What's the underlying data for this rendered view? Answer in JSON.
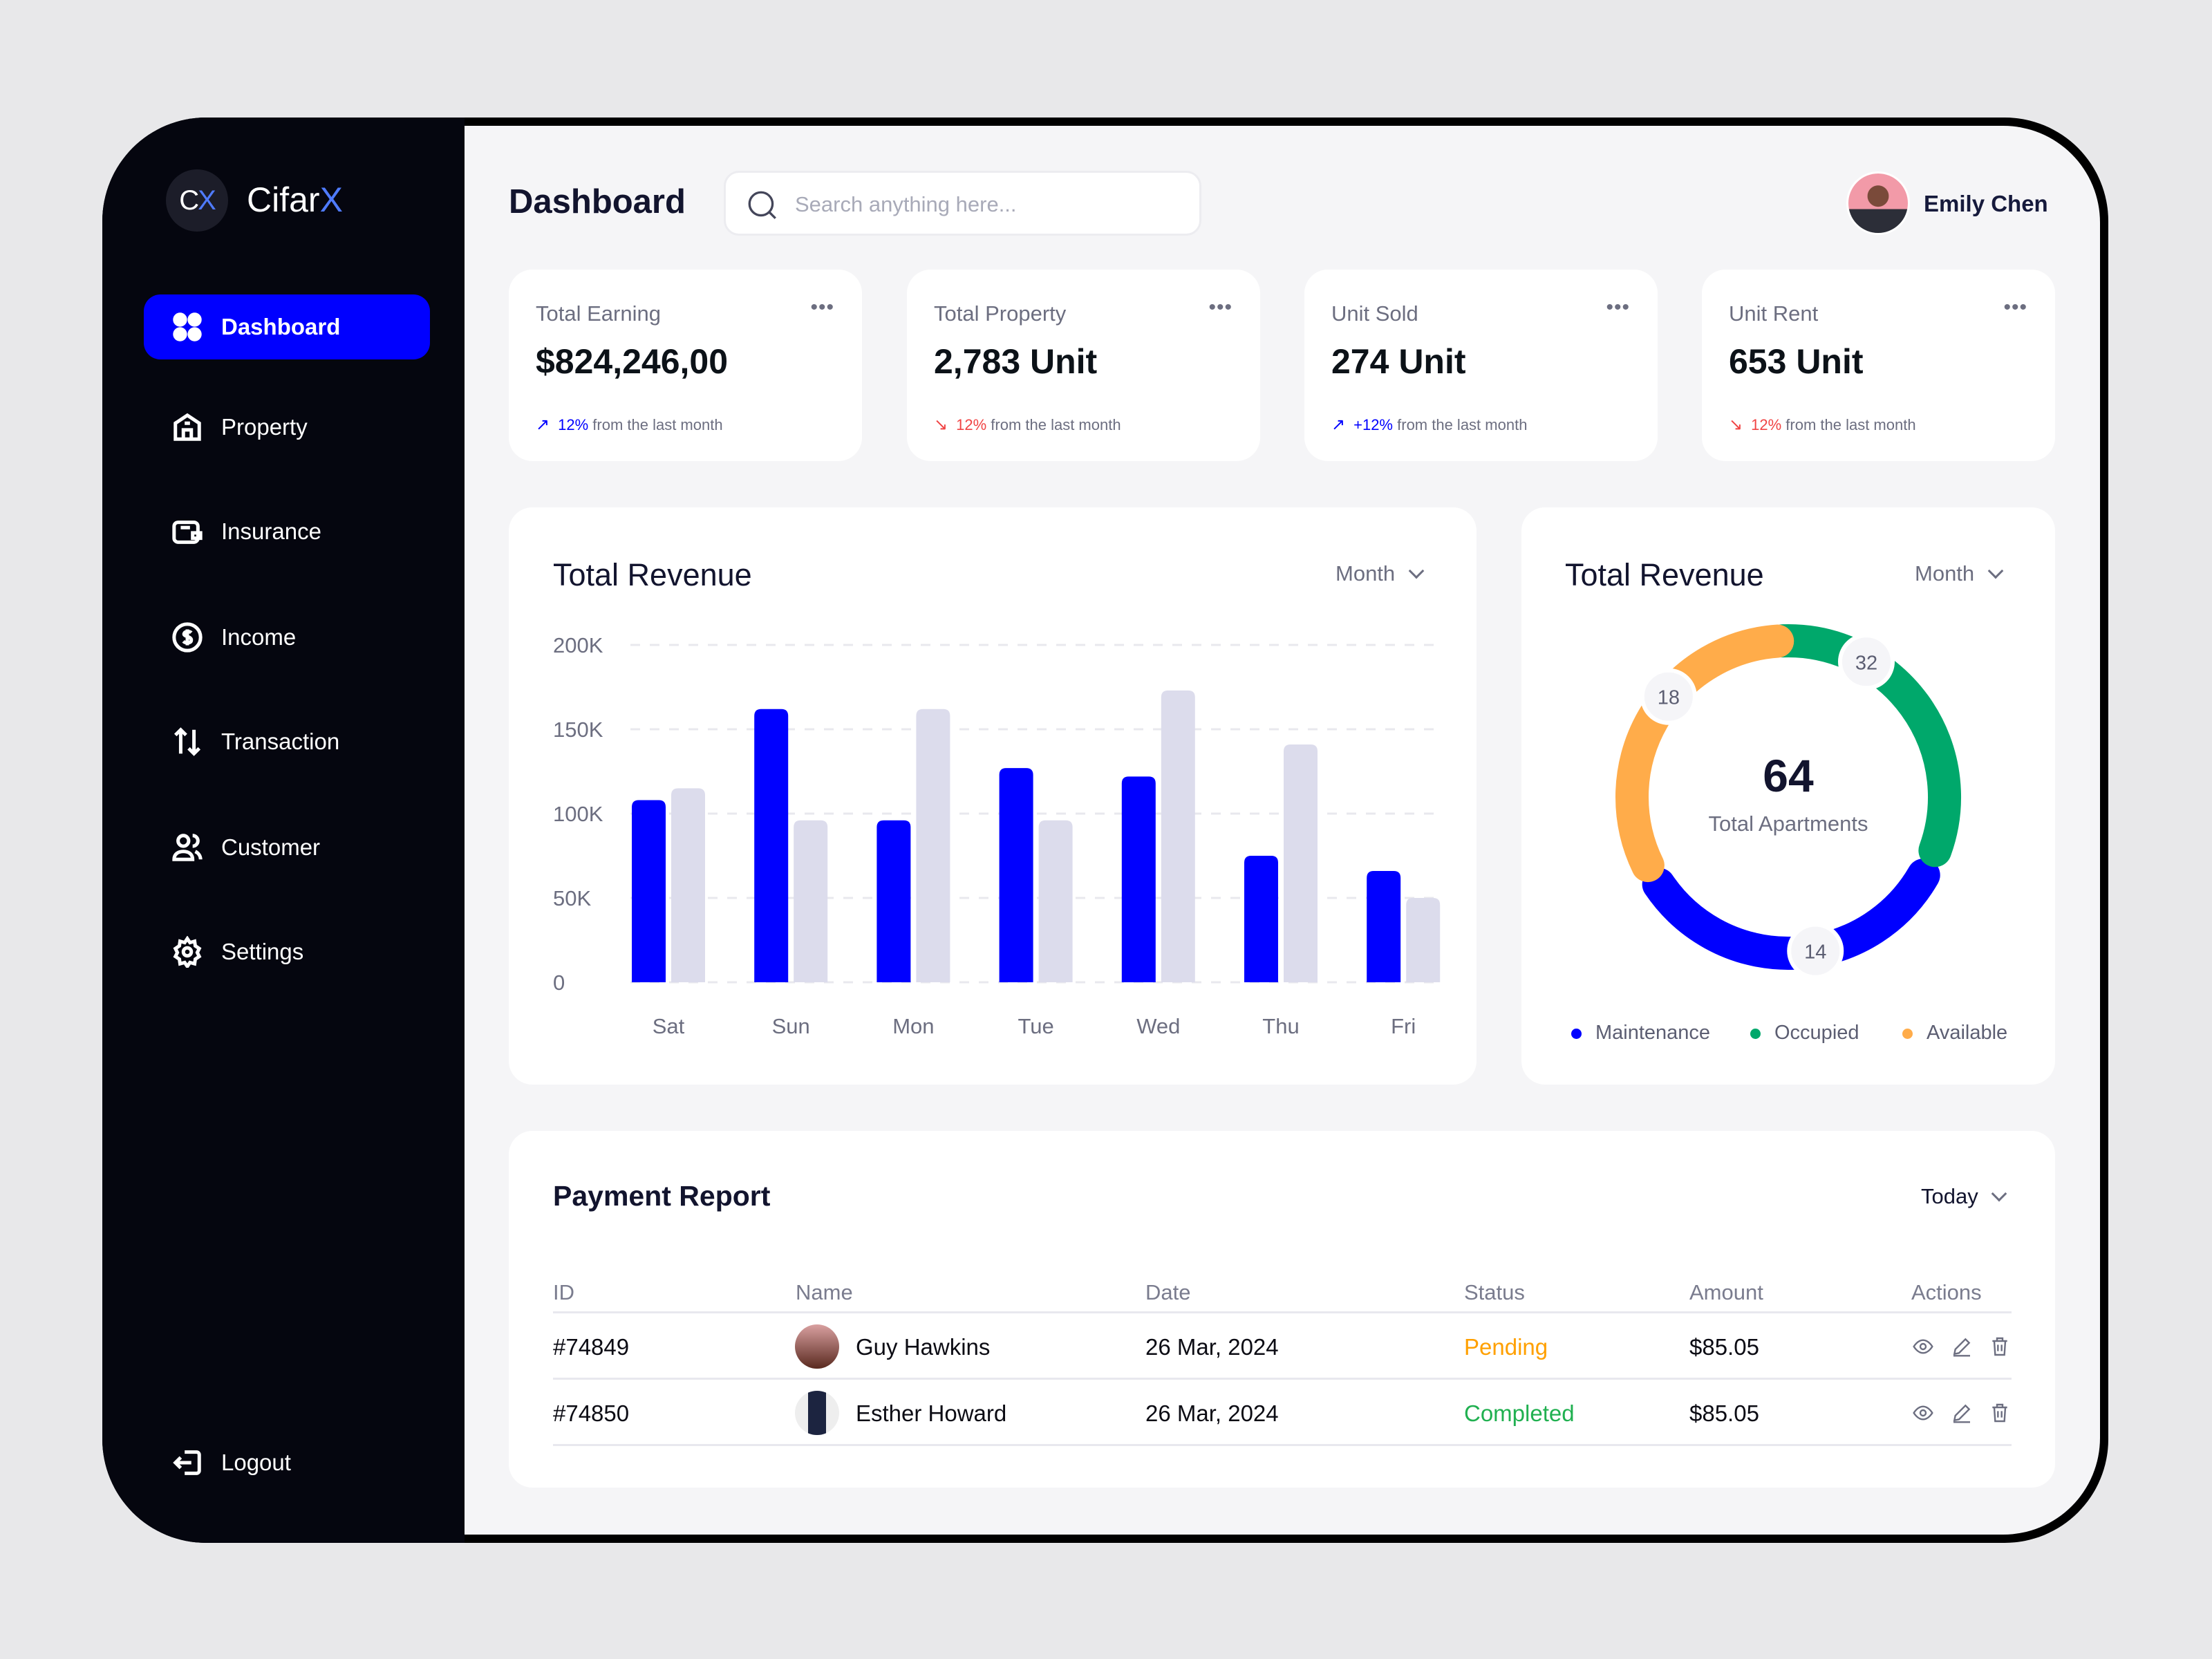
{
  "brand": {
    "logo_mark": "CX",
    "name": "Cifar",
    "name_accent": "X"
  },
  "sidebar": {
    "items": [
      {
        "label": "Dashboard",
        "icon": "grid-icon",
        "active": true
      },
      {
        "label": "Property",
        "icon": "home-icon"
      },
      {
        "label": "Insurance",
        "icon": "wallet-icon"
      },
      {
        "label": "Income",
        "icon": "dollar-circle-icon"
      },
      {
        "label": "Transaction",
        "icon": "arrows-up-down-icon"
      },
      {
        "label": "Customer",
        "icon": "users-icon"
      },
      {
        "label": "Settings",
        "icon": "gear-icon"
      }
    ],
    "logout": "Logout"
  },
  "header": {
    "title": "Dashboard",
    "search_placeholder": "Search anything here...",
    "user_name": "Emily Chen"
  },
  "stats": [
    {
      "label": "Total Earning",
      "value": "$824,246,00",
      "change": "12%",
      "direction": "up",
      "suffix": "from the last month"
    },
    {
      "label": "Total Property",
      "value": "2,783 Unit",
      "change": "12%",
      "direction": "down",
      "suffix": "from the last month"
    },
    {
      "label": "Unit Sold",
      "value": "274 Unit",
      "change": "+12%",
      "direction": "up",
      "suffix": "from the last month"
    },
    {
      "label": "Unit Rent",
      "value": "653 Unit",
      "change": "12%",
      "direction": "down",
      "suffix": "from the last month"
    }
  ],
  "colors": {
    "primary": "#0000ff",
    "secondary_bar": "#dcdcec",
    "green": "#00a86b",
    "orange": "#ffac4a",
    "red": "#f04444",
    "pending": "#ffa000",
    "completed": "#20b050"
  },
  "chart_data": [
    {
      "type": "bar",
      "title": "Total Revenue",
      "filter": "Month",
      "categories": [
        "Sat",
        "Sun",
        "Mon",
        "Tue",
        "Wed",
        "Thu",
        "Fri"
      ],
      "series": [
        {
          "values": [
            108000,
            162000,
            96000,
            127000,
            122000,
            75000,
            66000
          ]
        },
        {
          "values": [
            115000,
            96000,
            162000,
            96000,
            173000,
            141000,
            50000
          ]
        }
      ],
      "ylim": [
        0,
        200000
      ],
      "yticks": [
        "200K",
        "150K",
        "100K",
        "50K",
        "0"
      ],
      "grid": true
    },
    {
      "type": "pie",
      "title": "Total Revenue",
      "filter": "Month",
      "center_value": "64",
      "center_label": "Total Apartments",
      "slices": [
        {
          "name": "Maintenance",
          "value": 14,
          "color": "#0000ff"
        },
        {
          "name": "Occupied",
          "value": 32,
          "color": "#00a86b"
        },
        {
          "name": "Available",
          "value": 18,
          "color": "#ffac4a"
        }
      ],
      "legend": "bottom"
    }
  ],
  "payment": {
    "title": "Payment Report",
    "filter": "Today",
    "columns": [
      "ID",
      "Name",
      "Date",
      "Status",
      "Amount",
      "Actions"
    ],
    "rows": [
      {
        "id": "#74849",
        "name": "Guy Hawkins",
        "date": "26 Mar, 2024",
        "status": "Pending",
        "amount": "$85.05"
      },
      {
        "id": "#74850",
        "name": "Esther Howard",
        "date": "26 Mar, 2024",
        "status": "Completed",
        "amount": "$85.05"
      }
    ]
  }
}
